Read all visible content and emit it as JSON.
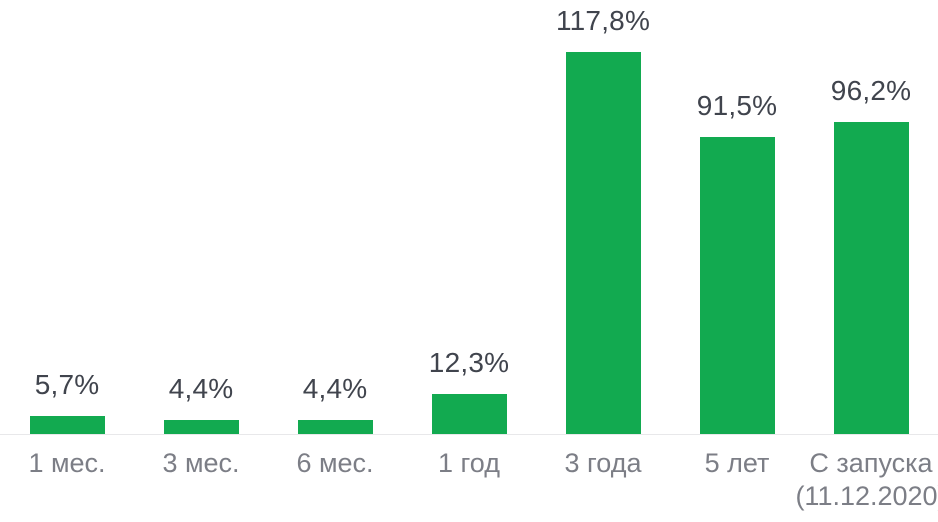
{
  "chart_data": {
    "type": "bar",
    "title": "",
    "xlabel": "",
    "ylabel": "",
    "categories": [
      "1 мес.",
      "3 мес.",
      "6 мес.",
      "1 год",
      "3 года",
      "5 лет",
      "С запуска\n(11.12.2020)"
    ],
    "values": [
      5.7,
      4.4,
      4.4,
      12.3,
      117.8,
      91.5,
      96.2
    ],
    "value_labels": [
      "5,7%",
      "4,4%",
      "4,4%",
      "12,3%",
      "117,8%",
      "91,5%",
      "96,2%"
    ],
    "unit": "%",
    "ylim": [
      0,
      117.8
    ],
    "grid": false,
    "legend": false,
    "colors": {
      "bar": "#12AA50",
      "value_label": "#40444d",
      "axis_label": "#7c7e86",
      "baseline": "#e8e8ea",
      "background": "#ffffff"
    }
  }
}
